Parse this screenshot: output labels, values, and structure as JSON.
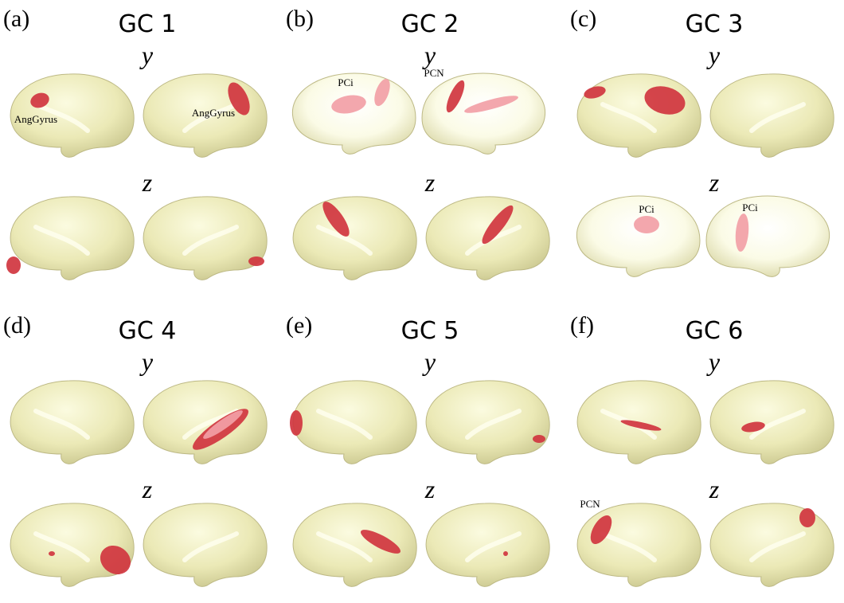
{
  "panels": [
    {
      "label": "(a)",
      "title": "GC 1",
      "rows": [
        {
          "variable": "y",
          "annotations": [
            "AngGyrus",
            "AngGyrus"
          ]
        },
        {
          "variable": "z",
          "annotations": []
        }
      ]
    },
    {
      "label": "(b)",
      "title": "GC 2",
      "rows": [
        {
          "variable": "y",
          "annotations": [
            "PCi",
            "PCN"
          ]
        },
        {
          "variable": "z",
          "annotations": []
        }
      ]
    },
    {
      "label": "(c)",
      "title": "GC 3",
      "rows": [
        {
          "variable": "y",
          "annotations": []
        },
        {
          "variable": "z",
          "annotations": [
            "PCi",
            "PCi"
          ]
        }
      ]
    },
    {
      "label": "(d)",
      "title": "GC 4",
      "rows": [
        {
          "variable": "y",
          "annotations": []
        },
        {
          "variable": "z",
          "annotations": []
        }
      ]
    },
    {
      "label": "(e)",
      "title": "GC 5",
      "rows": [
        {
          "variable": "y",
          "annotations": []
        },
        {
          "variable": "z",
          "annotations": []
        }
      ]
    },
    {
      "label": "(f)",
      "title": "GC 6",
      "rows": [
        {
          "variable": "y",
          "annotations": []
        },
        {
          "variable": "z",
          "annotations": [
            "PCN"
          ]
        }
      ]
    }
  ]
}
